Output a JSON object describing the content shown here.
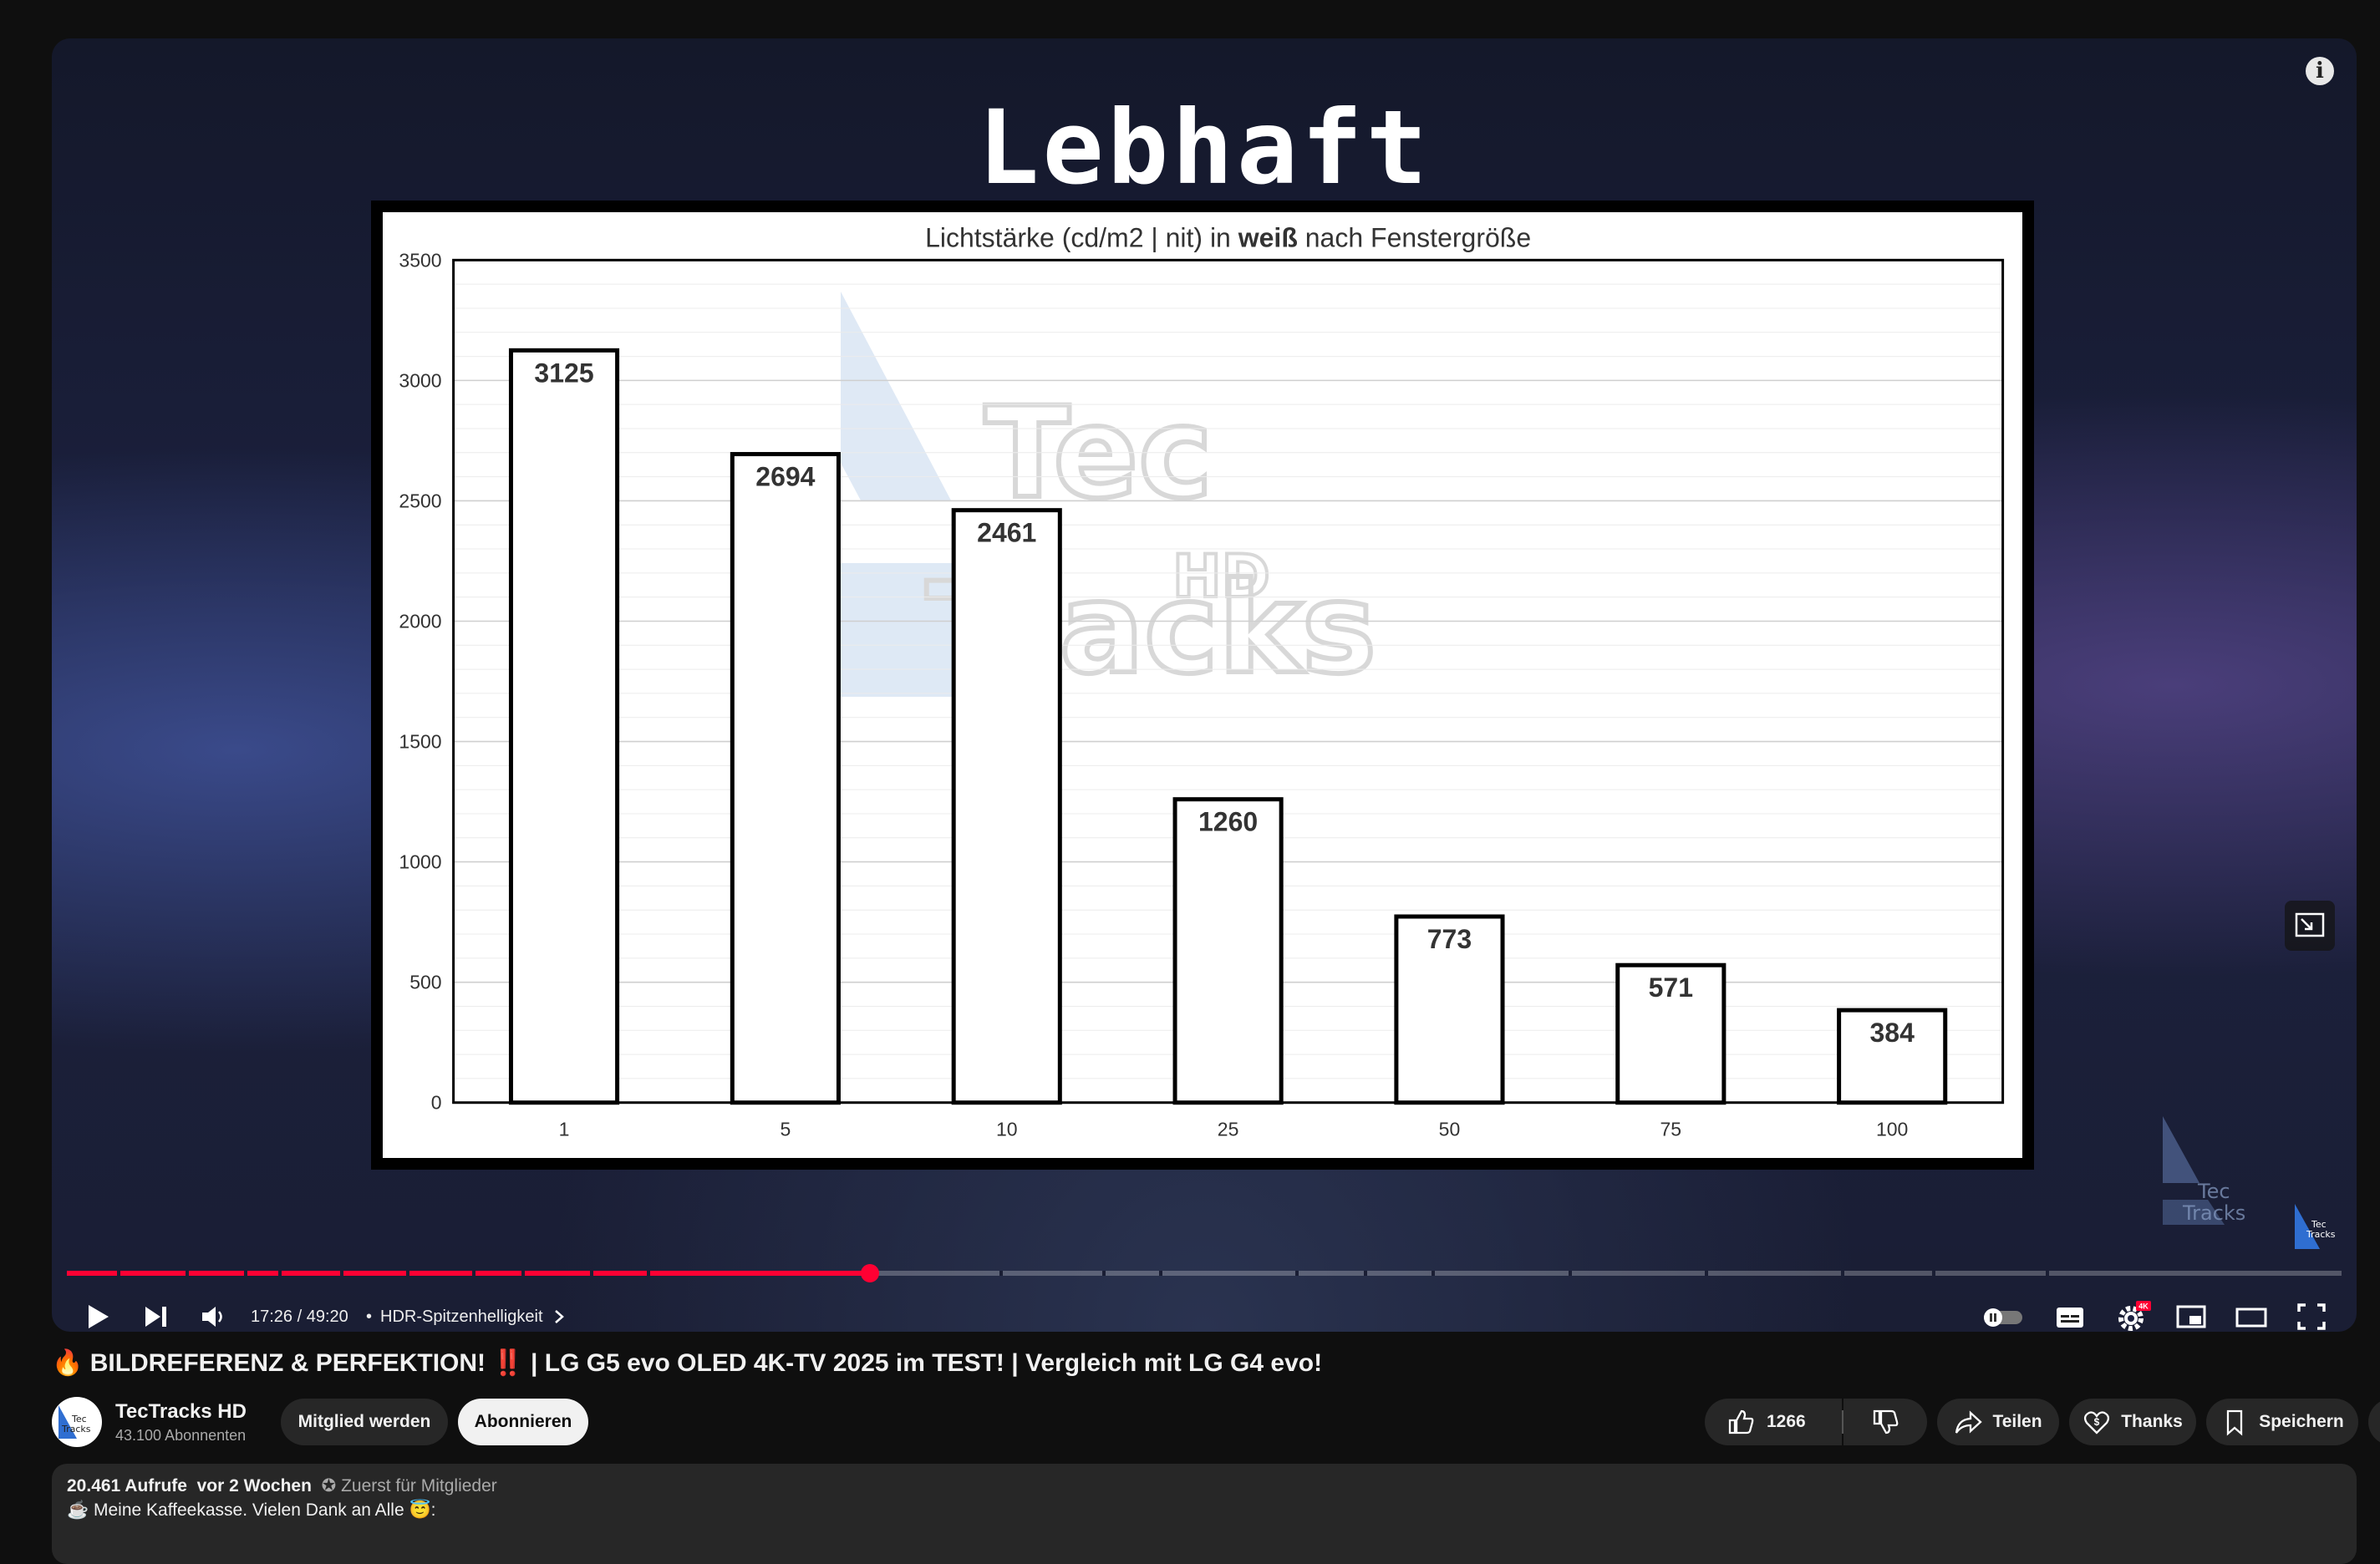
{
  "player": {
    "overlay_title": "Lebhaft",
    "time": "17:26 / 49:20",
    "chapter": "HDR-Spitzenhelligkeit",
    "progress_fraction": 0.353,
    "settings_badge": "4K",
    "watermark_logo": "Tec Tracks HD"
  },
  "chart_data": {
    "type": "bar",
    "title_prefix": "Lichtstärke (cd/m2 | nit)  in ",
    "title_bold": "weiß",
    "title_suffix": " nach Fenstergröße",
    "categories": [
      "1",
      "5",
      "10",
      "25",
      "50",
      "75",
      "100"
    ],
    "values": [
      3125,
      2694,
      2461,
      1260,
      773,
      571,
      384
    ],
    "ylim": [
      0,
      3500
    ],
    "yticks": [
      0,
      500,
      1000,
      1500,
      2000,
      2500,
      3000,
      3500
    ],
    "grid": true,
    "bar_fill": "#ffffff",
    "bar_stroke": "#000000"
  },
  "video": {
    "title": "🔥 BILDREFERENZ & PERFEKTION! ‼️ | LG G5 evo OLED 4K-TV 2025 im TEST! | Vergleich mit LG G4 evo!",
    "channel": "TecTracks HD",
    "subscribers": "43.100 Abonnenten",
    "member_button": "Mitglied werden",
    "subscribe_button": "Abonnieren",
    "likes": "1266",
    "share": "Teilen",
    "thanks": "Thanks",
    "save": "Speichern"
  },
  "description": {
    "views": "20.461 Aufrufe",
    "age": "vor 2 Wochen",
    "members_first": "Zuerst für Mitglieder",
    "line1": "Meine Kaffeekasse. Vielen Dank an Alle 😇:"
  },
  "colors": {
    "accent_red": "#ff0033",
    "background": "#0f0f0f",
    "pill": "#272727"
  }
}
